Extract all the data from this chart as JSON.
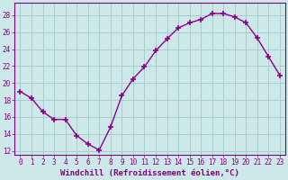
{
  "x": [
    0,
    1,
    2,
    3,
    4,
    5,
    6,
    7,
    8,
    9,
    10,
    11,
    12,
    13,
    14,
    15,
    16,
    17,
    18,
    19,
    20,
    21,
    22,
    23
  ],
  "y": [
    19.0,
    18.2,
    16.6,
    15.7,
    15.7,
    13.8,
    12.8,
    12.1,
    14.8,
    18.5,
    20.5,
    21.9,
    23.8,
    25.2,
    26.5,
    27.1,
    27.5,
    28.2,
    28.2,
    27.8,
    27.1,
    25.3,
    23.1,
    20.9
  ],
  "line_color": "#8b008b",
  "marker": "+",
  "marker_size": 4,
  "marker_lw": 1.2,
  "bg_color": "#cce8e8",
  "grid_color": "#aacccc",
  "xlabel": "Windchill (Refroidissement éolien,°C)",
  "ylabel": "",
  "ylim": [
    11.5,
    29.5
  ],
  "xlim": [
    -0.5,
    23.5
  ],
  "yticks": [
    12,
    14,
    16,
    18,
    20,
    22,
    24,
    26,
    28
  ],
  "xticks": [
    0,
    1,
    2,
    3,
    4,
    5,
    6,
    7,
    8,
    9,
    10,
    11,
    12,
    13,
    14,
    15,
    16,
    17,
    18,
    19,
    20,
    21,
    22,
    23
  ],
  "tick_label_size": 5.5,
  "xlabel_size": 6.5,
  "axis_color": "#800080",
  "line_width": 1.0
}
